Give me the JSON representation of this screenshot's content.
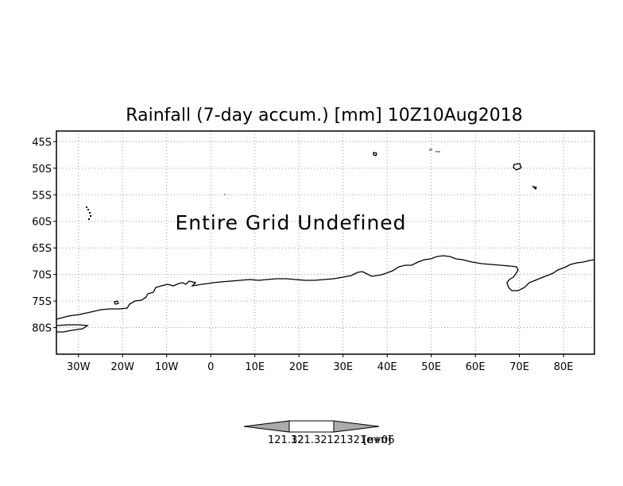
{
  "title": "Rainfall (7-day accum.) [mm] 10Z10Aug2018",
  "message": "Entire Grid Undefined",
  "lat_labels": [
    "45S",
    "50S",
    "55S",
    "60S",
    "65S",
    "70S",
    "75S",
    "80S"
  ],
  "lon_labels": [
    "30W",
    "20W",
    "10W",
    "0",
    "10E",
    "20E",
    "30E",
    "40E",
    "50E",
    "60E",
    "70E",
    "80E"
  ],
  "lon_range": [
    -35,
    87
  ],
  "lat_range": [
    -85,
    -43
  ],
  "colorbar": {
    "label_value": "121.32121321e+06",
    "label_overlap": "121.32",
    "unit": "[mm]"
  },
  "colors": {
    "frame": "#000000",
    "grid": "#9a9a9a",
    "coast": "#000000",
    "colorbar_arrow": "#aaaaaa"
  }
}
